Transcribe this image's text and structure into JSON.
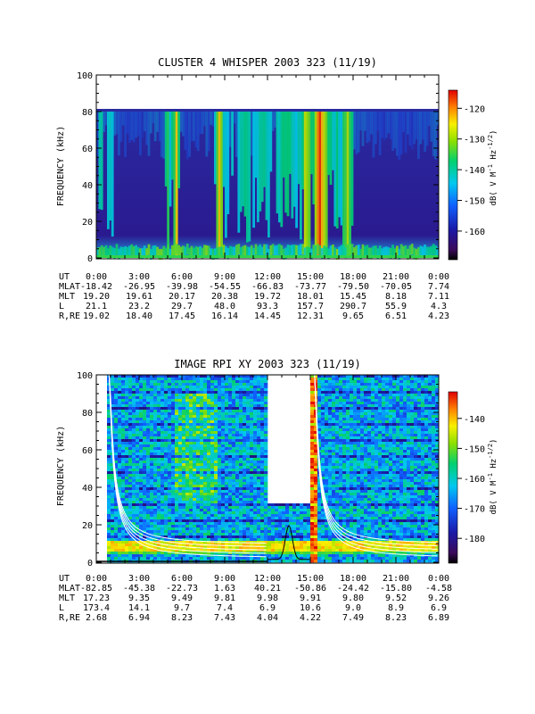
{
  "chart_data": [
    {
      "type": "heatmap",
      "title": "CLUSTER 4 WHISPER 2003 323 (11/19)",
      "ylabel": "FREQUENCY (kHz)",
      "yticks": [
        "0",
        "20",
        "40",
        "60",
        "80",
        "100"
      ],
      "ylim": [
        0,
        100
      ],
      "data_ylim": [
        0,
        80
      ],
      "colorbar": {
        "label": "dB( V M",
        "exp1": "-1",
        "mid": " Hz",
        "exp2": "-1/2",
        "end": ")",
        "ticks": [
          "-120",
          "-130",
          "-140",
          "-150",
          "-160"
        ],
        "range": [
          -167,
          -117
        ]
      },
      "intensity": [
        {
          "t": 0.0,
          "v": 0.3
        },
        {
          "t": 0.3,
          "v": 0.55
        },
        {
          "t": 0.6,
          "v": 0.35
        },
        {
          "t": 0.9,
          "v": 0.45
        },
        {
          "t": 1.3,
          "v": 0.4
        },
        {
          "t": 1.8,
          "v": 0.3
        },
        {
          "t": 2.4,
          "v": 0.3
        },
        {
          "t": 3.2,
          "v": 0.28
        },
        {
          "t": 4.0,
          "v": 0.42
        },
        {
          "t": 4.6,
          "v": 0.35
        },
        {
          "t": 5.0,
          "v": 0.7
        },
        {
          "t": 5.2,
          "v": 0.4
        },
        {
          "t": 5.6,
          "v": 0.8
        },
        {
          "t": 5.9,
          "v": 0.45
        },
        {
          "t": 6.3,
          "v": 0.3
        },
        {
          "t": 7.5,
          "v": 0.35
        },
        {
          "t": 8.3,
          "v": 0.4
        },
        {
          "t": 8.6,
          "v": 0.8
        },
        {
          "t": 8.9,
          "v": 0.55
        },
        {
          "t": 9.6,
          "v": 0.42
        },
        {
          "t": 10.4,
          "v": 0.55
        },
        {
          "t": 11.0,
          "v": 0.4
        },
        {
          "t": 11.8,
          "v": 0.55
        },
        {
          "t": 12.5,
          "v": 0.45
        },
        {
          "t": 13.3,
          "v": 0.6
        },
        {
          "t": 14.0,
          "v": 0.4
        },
        {
          "t": 14.8,
          "v": 0.78
        },
        {
          "t": 15.2,
          "v": 0.55
        },
        {
          "t": 15.6,
          "v": 0.95
        },
        {
          "t": 16.0,
          "v": 0.7
        },
        {
          "t": 16.6,
          "v": 0.55
        },
        {
          "t": 17.2,
          "v": 0.5
        },
        {
          "t": 17.6,
          "v": 0.7
        },
        {
          "t": 18.2,
          "v": 0.4
        },
        {
          "t": 19.0,
          "v": 0.35
        },
        {
          "t": 20.0,
          "v": 0.3
        },
        {
          "t": 21.0,
          "v": 0.33
        },
        {
          "t": 22.0,
          "v": 0.3
        },
        {
          "t": 23.0,
          "v": 0.35
        },
        {
          "t": 24.0,
          "v": 0.4
        }
      ],
      "table": {
        "headers": [
          "UT",
          "MLAT",
          "MLT",
          "L",
          "R,RE"
        ],
        "rows": [
          [
            "0:00",
            "3:00",
            "6:00",
            "9:00",
            "12:00",
            "15:00",
            "18:00",
            "21:00",
            "0:00"
          ],
          [
            "-18.42",
            "-26.95",
            "-39.98",
            "-54.55",
            "-66.83",
            "-73.77",
            "-79.50",
            "-70.05",
            "7.74"
          ],
          [
            "19.20",
            "19.61",
            "20.17",
            "20.38",
            "19.72",
            "18.01",
            "15.45",
            "8.18",
            "7.11"
          ],
          [
            "21.1",
            "23.2",
            "29.7",
            "48.0",
            "93.3",
            "157.7",
            "290.7",
            "55.9",
            "4.3"
          ],
          [
            "19.02",
            "18.40",
            "17.45",
            "16.14",
            "14.45",
            "12.31",
            "9.65",
            "6.51",
            "4.23"
          ]
        ]
      }
    },
    {
      "type": "heatmap",
      "title": "IMAGE RPI XY 2003 323 (11/19)",
      "ylabel": "FREQUENCY (kHz)",
      "yticks": [
        "0",
        "20",
        "40",
        "60",
        "80",
        "100"
      ],
      "ylim": [
        0,
        100
      ],
      "data_gap_hours": [
        [
          12.0,
          15.0
        ]
      ],
      "colorbar": {
        "label": "dB( V M",
        "exp1": "-1",
        "mid": " Hz",
        "exp2": "-1/2",
        "end": ")",
        "ticks": [
          "-140",
          "-150",
          "-160",
          "-170",
          "-180"
        ],
        "range": [
          -185,
          -135
        ]
      },
      "table": {
        "headers": [
          "UT",
          "MLAT",
          "MLT",
          "L",
          "R,RE"
        ],
        "rows": [
          [
            "0:00",
            "3:00",
            "6:00",
            "9:00",
            "12:00",
            "15:00",
            "18:00",
            "21:00",
            "0:00"
          ],
          [
            "-82.85",
            "-45.38",
            "-22.73",
            "1.63",
            "40.21",
            "-50.86",
            "-24.42",
            "-15.80",
            "-4.58"
          ],
          [
            "17.23",
            "9.35",
            "9.49",
            "9.81",
            "9.98",
            "9.91",
            "9.80",
            "9.52",
            "9.26"
          ],
          [
            "173.4",
            "14.1",
            "9.7",
            "7.4",
            "6.9",
            "10.6",
            "9.0",
            "8.9",
            "6.9"
          ],
          [
            "2.68",
            "6.94",
            "8.23",
            "7.43",
            "4.04",
            "4.22",
            "7.49",
            "8.23",
            "6.89"
          ]
        ]
      }
    }
  ]
}
